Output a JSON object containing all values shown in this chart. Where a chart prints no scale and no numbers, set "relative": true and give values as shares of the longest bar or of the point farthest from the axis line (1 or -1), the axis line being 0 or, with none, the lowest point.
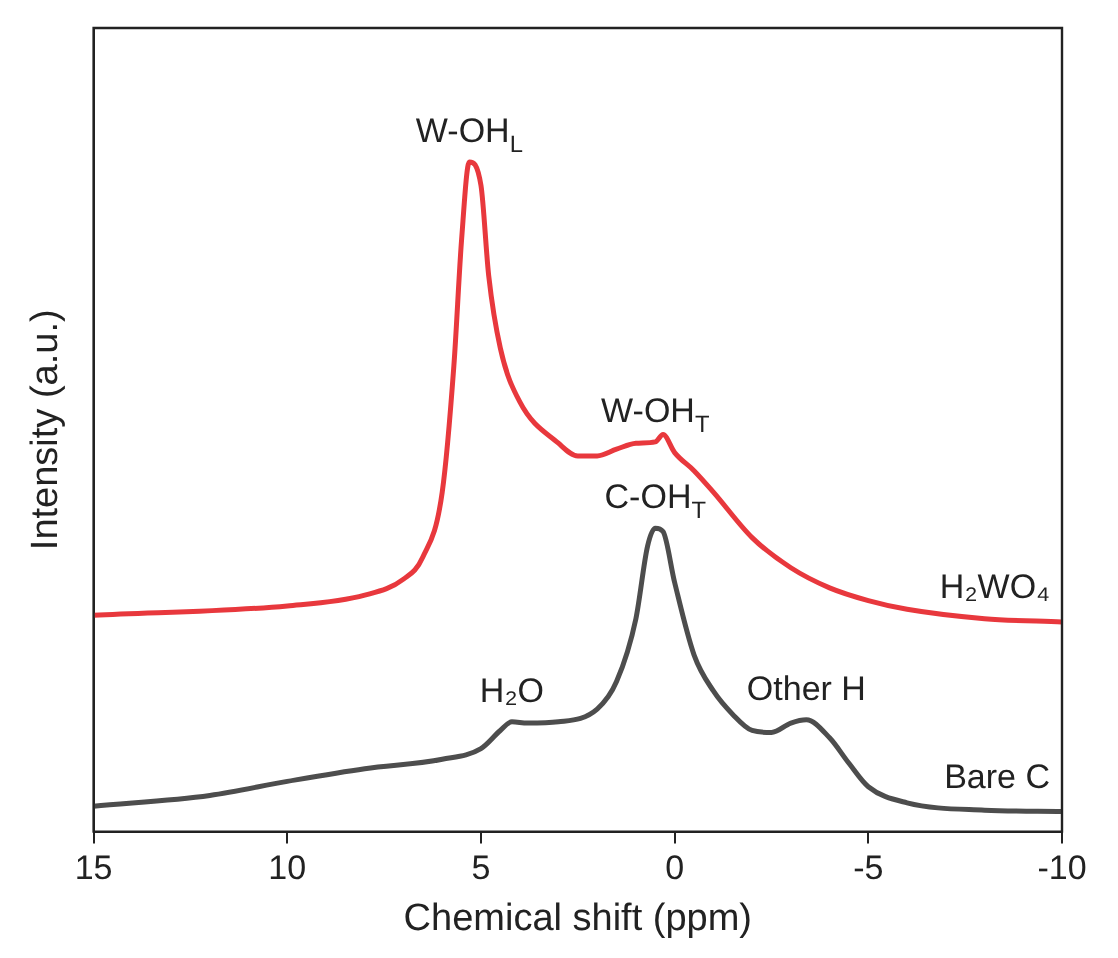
{
  "chart_data": {
    "type": "line",
    "relative": true,
    "xlabel": "Chemical shift (ppm)",
    "ylabel": "Intensity (a.u.)",
    "xlim": [
      15,
      -10
    ],
    "xticks": [
      15,
      10,
      5,
      0,
      -5,
      -10
    ],
    "grid": false,
    "legend": false,
    "marker": "none",
    "line_style": "solid",
    "series": [
      {
        "name": "H₂WO₄",
        "color": "#e8383d",
        "x": [
          15,
          10,
          8,
          7,
          6.5,
          6,
          5.7,
          5.5,
          5.3,
          5.0,
          4.8,
          4.5,
          4,
          3,
          2.5,
          2,
          1.5,
          1,
          0.5,
          0.3,
          0,
          -0.5,
          -1,
          -2,
          -3,
          -4,
          -5,
          -6,
          -8,
          -10
        ],
        "values": [
          0.323,
          0.337,
          0.353,
          0.377,
          0.41,
          0.507,
          0.695,
          0.884,
          1.0,
          0.965,
          0.83,
          0.722,
          0.642,
          0.58,
          0.561,
          0.561,
          0.571,
          0.58,
          0.582,
          0.593,
          0.566,
          0.539,
          0.507,
          0.439,
          0.394,
          0.364,
          0.345,
          0.332,
          0.318,
          0.313
        ]
      },
      {
        "name": "Bare C",
        "color": "#4d4d4d",
        "x": [
          15,
          12,
          10,
          8,
          6,
          5,
          4.5,
          4.2,
          3.8,
          3,
          2,
          1.5,
          1,
          0.7,
          0.5,
          0.3,
          0,
          -0.5,
          -1,
          -1.5,
          -2,
          -2.5,
          -3,
          -3.4,
          -4,
          -4.5,
          -5,
          -6,
          -8,
          -10
        ],
        "values": [
          0.038,
          0.054,
          0.075,
          0.094,
          0.108,
          0.124,
          0.151,
          0.164,
          0.162,
          0.164,
          0.183,
          0.224,
          0.318,
          0.426,
          0.453,
          0.448,
          0.372,
          0.264,
          0.21,
          0.175,
          0.151,
          0.148,
          0.162,
          0.167,
          0.14,
          0.102,
          0.067,
          0.043,
          0.032,
          0.03
        ]
      }
    ],
    "annotations": [
      {
        "text": "W-OH$_{L}$",
        "x": 5.3,
        "y": 1.0
      },
      {
        "text": "W-OH$_{T}$",
        "x": 0.5,
        "y": 0.582
      },
      {
        "text": "C-OH$_{T}$",
        "x": 0.5,
        "y": 0.453
      },
      {
        "text": "H₂O",
        "x": 4.2,
        "y": 0.164
      },
      {
        "text": "Other H",
        "x": -3.4,
        "y": 0.167
      }
    ]
  }
}
